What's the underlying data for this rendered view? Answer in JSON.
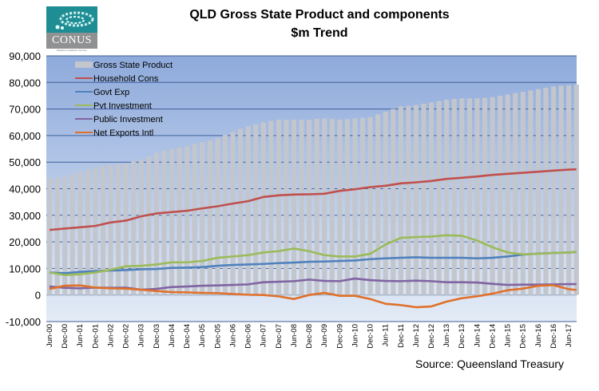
{
  "chart_data": {
    "type": "bar+line",
    "title": "QLD Gross State Product and components",
    "subtitle": "$m Trend",
    "source": "Source: Queensland Treasury",
    "logo_text": "CONUS",
    "logo_subtext": "Business Consultancy Services",
    "ylim": [
      -10000,
      90000
    ],
    "y_ticks": [
      "90,000",
      "80,000",
      "70,000",
      "60,000",
      "50,000",
      "40,000",
      "30,000",
      "20,000",
      "10,000",
      "0",
      "-10,000"
    ],
    "y_tick_values": [
      90000,
      80000,
      70000,
      60000,
      50000,
      40000,
      30000,
      20000,
      10000,
      0,
      -10000
    ],
    "x_tick_labels": [
      "Jun-00",
      "Dec-00",
      "Jun-01",
      "Dec-01",
      "Jun-02",
      "Dec-02",
      "Jun-03",
      "Dec-03",
      "Jun-04",
      "Dec-04",
      "Jun-05",
      "Dec-05",
      "Jun-06",
      "Dec-06",
      "Jun-07",
      "Dec-07",
      "Jun-08",
      "Dec-08",
      "Jun-09",
      "Dec-09",
      "Jun-10",
      "Dec-10",
      "Jun-11",
      "Dec-11",
      "Jun-12",
      "Dec-12",
      "Jun-13",
      "Dec-13",
      "Jun-14",
      "Dec-14",
      "Jun-15",
      "Dec-15",
      "Jun-16",
      "Dec-16",
      "Jun-17"
    ],
    "grid": true,
    "legend": "top-left",
    "bar_series": {
      "name": "Gross State Product",
      "color": "#c3c6cd",
      "frequency": "quarterly, Jun-00 to Sep-17",
      "values": [
        44000,
        44200,
        44500,
        45500,
        46500,
        47300,
        48000,
        48500,
        49000,
        49200,
        49500,
        50200,
        51000,
        52300,
        53500,
        54300,
        55000,
        55500,
        56000,
        56800,
        57500,
        58200,
        59000,
        60300,
        61500,
        62500,
        63500,
        64300,
        65000,
        65500,
        66000,
        66000,
        66000,
        66000,
        66000,
        66300,
        66500,
        66200,
        66000,
        66200,
        66500,
        66700,
        67000,
        68000,
        69000,
        70000,
        71000,
        71200,
        71500,
        72000,
        72500,
        73000,
        73500,
        73800,
        74000,
        74000,
        74000,
        74200,
        74500,
        75000,
        75500,
        76000,
        76500,
        77000,
        77500,
        78000,
        78500,
        78800,
        79000,
        79200
      ]
    },
    "line_x": [
      "Jun-00",
      "Dec-00",
      "Jun-01",
      "Dec-01",
      "Jun-02",
      "Dec-02",
      "Jun-03",
      "Dec-03",
      "Jun-04",
      "Dec-04",
      "Jun-05",
      "Dec-05",
      "Jun-06",
      "Dec-06",
      "Jun-07",
      "Dec-07",
      "Jun-08",
      "Dec-08",
      "Jun-09",
      "Dec-09",
      "Jun-10",
      "Dec-10",
      "Jun-11",
      "Dec-11",
      "Jun-12",
      "Dec-12",
      "Jun-13",
      "Dec-13",
      "Jun-14",
      "Dec-14",
      "Jun-15",
      "Dec-15",
      "Jun-16",
      "Dec-16",
      "Jun-17",
      "Sep-17"
    ],
    "series": [
      {
        "name": "Household Cons",
        "color": "#c0504d",
        "values": [
          24500,
          25000,
          25500,
          26000,
          27300,
          28000,
          29600,
          30700,
          31200,
          31700,
          32600,
          33400,
          34400,
          35300,
          36900,
          37500,
          37800,
          37900,
          38100,
          39200,
          39800,
          40600,
          41100,
          42000,
          42400,
          42900,
          43700,
          44100,
          44600,
          45200,
          45600,
          46000,
          46400,
          46800,
          47200,
          47300
        ]
      },
      {
        "name": "Govt Exp",
        "color": "#4f81bd",
        "values": [
          8500,
          8200,
          8700,
          9000,
          9200,
          9400,
          9700,
          9800,
          10200,
          10300,
          10500,
          11000,
          11300,
          11500,
          11700,
          12000,
          12200,
          12500,
          12600,
          12800,
          13000,
          13500,
          13800,
          14000,
          14200,
          14000,
          14000,
          14000,
          13800,
          14000,
          14500,
          15200,
          15600,
          15800,
          16000,
          16200
        ]
      },
      {
        "name": "Pvt Investment",
        "color": "#9bbb59",
        "values": [
          8500,
          7500,
          7800,
          8500,
          9500,
          10800,
          11000,
          11500,
          12300,
          12300,
          12800,
          14000,
          14500,
          15000,
          16000,
          16500,
          17500,
          16500,
          15000,
          14500,
          14500,
          15500,
          19000,
          21500,
          21800,
          22000,
          22500,
          22300,
          20500,
          18000,
          16000,
          15300,
          15500,
          15800,
          16000,
          16300
        ]
      },
      {
        "name": "Public Investment",
        "color": "#8064a2",
        "values": [
          3200,
          2700,
          2500,
          2800,
          2700,
          2800,
          2000,
          2300,
          3000,
          3200,
          3500,
          3600,
          3800,
          4000,
          4800,
          5000,
          5200,
          5800,
          5300,
          5200,
          6200,
          5600,
          5300,
          5200,
          5400,
          5200,
          4800,
          4800,
          4700,
          4200,
          3800,
          3900,
          3900,
          4000,
          4100,
          4100
        ]
      },
      {
        "name": "Net Exports Intl",
        "color": "#e0702a",
        "values": [
          2300,
          3500,
          3600,
          2800,
          2500,
          2400,
          2000,
          1500,
          1100,
          1000,
          800,
          700,
          400,
          100,
          0,
          -500,
          -1500,
          0,
          800,
          -300,
          -300,
          -1500,
          -3300,
          -3800,
          -4600,
          -4300,
          -2500,
          -1200,
          -500,
          500,
          1800,
          2400,
          3500,
          3700,
          2200,
          1900
        ]
      }
    ]
  }
}
